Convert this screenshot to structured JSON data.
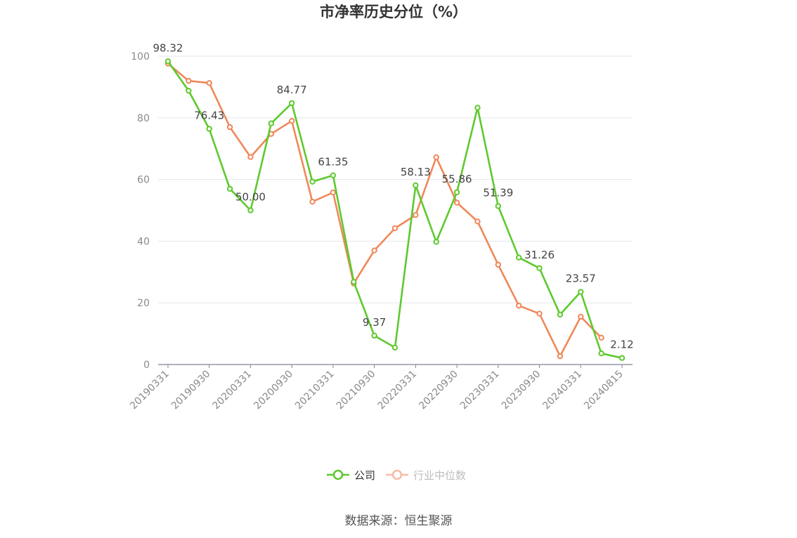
{
  "chart_data": {
    "type": "line",
    "title": "市净率历史分位（%）",
    "source": "数据来源：恒生聚源",
    "ylim": [
      0,
      100
    ],
    "yticks": [
      0,
      20,
      40,
      60,
      80,
      100
    ],
    "grid": true,
    "legend_position": "bottom-center",
    "x": [
      "20190331",
      "20190630",
      "20190930",
      "20191231",
      "20200331",
      "20200630",
      "20200930",
      "20201231",
      "20210331",
      "20210630",
      "20210930",
      "20211231",
      "20220331",
      "20220630",
      "20220930",
      "20221231",
      "20230331",
      "20230630",
      "20230930",
      "20231231",
      "20240331",
      "20240630",
      "20240815"
    ],
    "xtick_labels": [
      "20190331",
      "20190930",
      "20200331",
      "20200930",
      "20210331",
      "20210930",
      "20220331",
      "20220930",
      "20230331",
      "20230930",
      "20240331",
      "20240815"
    ],
    "series": [
      {
        "name": "公司",
        "color": "#5ec92e",
        "values": [
          98.32,
          88.8,
          76.43,
          57.0,
          50.0,
          78.2,
          84.77,
          59.3,
          61.35,
          26.8,
          9.37,
          5.5,
          58.13,
          39.8,
          55.86,
          83.3,
          51.39,
          34.7,
          31.26,
          16.2,
          23.57,
          3.6,
          2.12
        ],
        "data_labels": {
          "0": "98.32",
          "2": "76.43",
          "4": "50.00",
          "6": "84.77",
          "8": "61.35",
          "10": "9.37",
          "12": "58.13",
          "14": "55.86",
          "16": "51.39",
          "18": "31.26",
          "20": "23.57",
          "22": "2.12"
        }
      },
      {
        "name": "行业中位数",
        "color": "#f0885a",
        "values": [
          97.6,
          92.0,
          91.3,
          77.0,
          67.3,
          74.8,
          79.0,
          52.8,
          55.8,
          26.3,
          37.0,
          44.2,
          48.5,
          67.2,
          52.5,
          46.4,
          32.4,
          19.1,
          16.5,
          2.7,
          15.5,
          8.7,
          null
        ]
      }
    ]
  }
}
